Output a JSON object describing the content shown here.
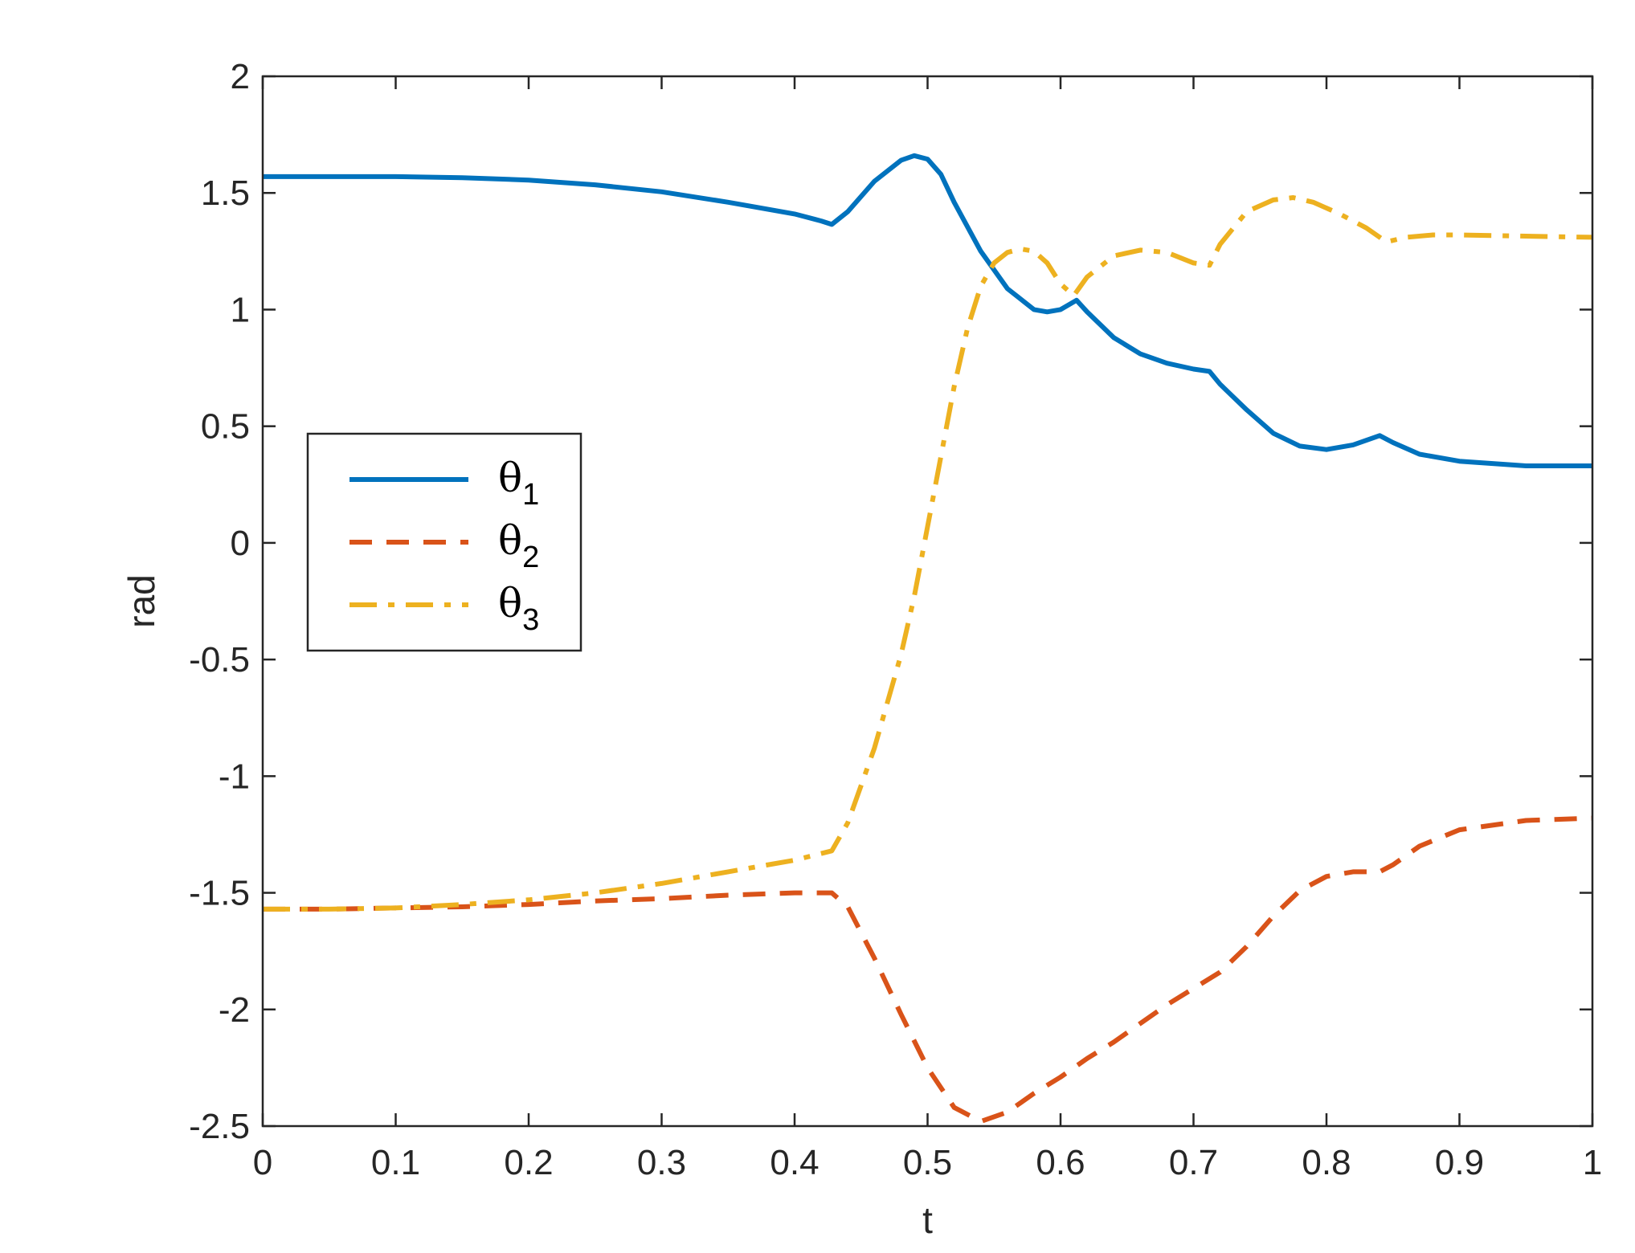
{
  "chart_data": {
    "type": "line",
    "title": "",
    "xlabel": "t",
    "ylabel": "rad",
    "xlim": [
      0,
      1
    ],
    "ylim": [
      -2.5,
      2
    ],
    "xticks": [
      "0",
      "0.1",
      "0.2",
      "0.3",
      "0.4",
      "0.5",
      "0.6",
      "0.7",
      "0.8",
      "0.9",
      "1"
    ],
    "yticks": [
      "-2.5",
      "-2",
      "-1.5",
      "-1",
      "-0.5",
      "0",
      "0.5",
      "1",
      "1.5",
      "2"
    ],
    "grid": false,
    "legend_position": "left-middle",
    "series": [
      {
        "name": "θ1",
        "symbol": "θ",
        "subscript": "1",
        "color": "#0072BD",
        "style": "solid",
        "x": [
          0,
          0.05,
          0.1,
          0.15,
          0.2,
          0.25,
          0.3,
          0.35,
          0.4,
          0.42,
          0.428,
          0.44,
          0.46,
          0.48,
          0.49,
          0.5,
          0.51,
          0.52,
          0.54,
          0.56,
          0.58,
          0.59,
          0.6,
          0.612,
          0.62,
          0.64,
          0.66,
          0.68,
          0.7,
          0.712,
          0.72,
          0.74,
          0.76,
          0.78,
          0.8,
          0.82,
          0.84,
          0.85,
          0.87,
          0.9,
          0.95,
          1.0
        ],
        "y": [
          1.57,
          1.57,
          1.57,
          1.565,
          1.555,
          1.535,
          1.505,
          1.46,
          1.41,
          1.38,
          1.365,
          1.42,
          1.55,
          1.64,
          1.66,
          1.645,
          1.58,
          1.46,
          1.25,
          1.09,
          1.0,
          0.99,
          1.0,
          1.04,
          0.99,
          0.88,
          0.81,
          0.77,
          0.745,
          0.735,
          0.68,
          0.57,
          0.47,
          0.415,
          0.4,
          0.42,
          0.46,
          0.43,
          0.38,
          0.35,
          0.33,
          0.33
        ]
      },
      {
        "name": "θ2",
        "symbol": "θ",
        "subscript": "2",
        "color": "#D95319",
        "style": "dashed",
        "x": [
          0,
          0.05,
          0.1,
          0.15,
          0.2,
          0.25,
          0.3,
          0.35,
          0.4,
          0.428,
          0.44,
          0.46,
          0.48,
          0.5,
          0.52,
          0.54,
          0.56,
          0.58,
          0.6,
          0.62,
          0.64,
          0.66,
          0.68,
          0.7,
          0.72,
          0.74,
          0.76,
          0.78,
          0.8,
          0.82,
          0.84,
          0.85,
          0.87,
          0.9,
          0.95,
          1.0
        ],
        "y": [
          -1.57,
          -1.57,
          -1.565,
          -1.56,
          -1.55,
          -1.535,
          -1.525,
          -1.51,
          -1.5,
          -1.5,
          -1.56,
          -1.78,
          -2.02,
          -2.25,
          -2.42,
          -2.48,
          -2.44,
          -2.36,
          -2.29,
          -2.21,
          -2.14,
          -2.06,
          -1.98,
          -1.91,
          -1.84,
          -1.73,
          -1.6,
          -1.49,
          -1.43,
          -1.41,
          -1.41,
          -1.38,
          -1.3,
          -1.23,
          -1.19,
          -1.18
        ]
      },
      {
        "name": "θ3",
        "symbol": "θ",
        "subscript": "3",
        "color": "#EDB120",
        "style": "dash-dot",
        "x": [
          0,
          0.05,
          0.1,
          0.15,
          0.2,
          0.25,
          0.3,
          0.35,
          0.4,
          0.428,
          0.44,
          0.46,
          0.48,
          0.49,
          0.5,
          0.51,
          0.52,
          0.53,
          0.54,
          0.55,
          0.56,
          0.57,
          0.58,
          0.59,
          0.6,
          0.61,
          0.62,
          0.64,
          0.66,
          0.68,
          0.7,
          0.712,
          0.72,
          0.74,
          0.76,
          0.775,
          0.79,
          0.81,
          0.83,
          0.845,
          0.86,
          0.88,
          0.9,
          0.95,
          1.0
        ],
        "y": [
          -1.57,
          -1.57,
          -1.565,
          -1.55,
          -1.53,
          -1.5,
          -1.46,
          -1.41,
          -1.36,
          -1.32,
          -1.2,
          -0.88,
          -0.48,
          -0.23,
          0.07,
          0.37,
          0.67,
          0.92,
          1.1,
          1.2,
          1.245,
          1.26,
          1.25,
          1.2,
          1.11,
          1.06,
          1.14,
          1.23,
          1.255,
          1.245,
          1.2,
          1.19,
          1.28,
          1.42,
          1.47,
          1.48,
          1.46,
          1.41,
          1.35,
          1.29,
          1.31,
          1.32,
          1.32,
          1.315,
          1.31
        ]
      }
    ]
  }
}
